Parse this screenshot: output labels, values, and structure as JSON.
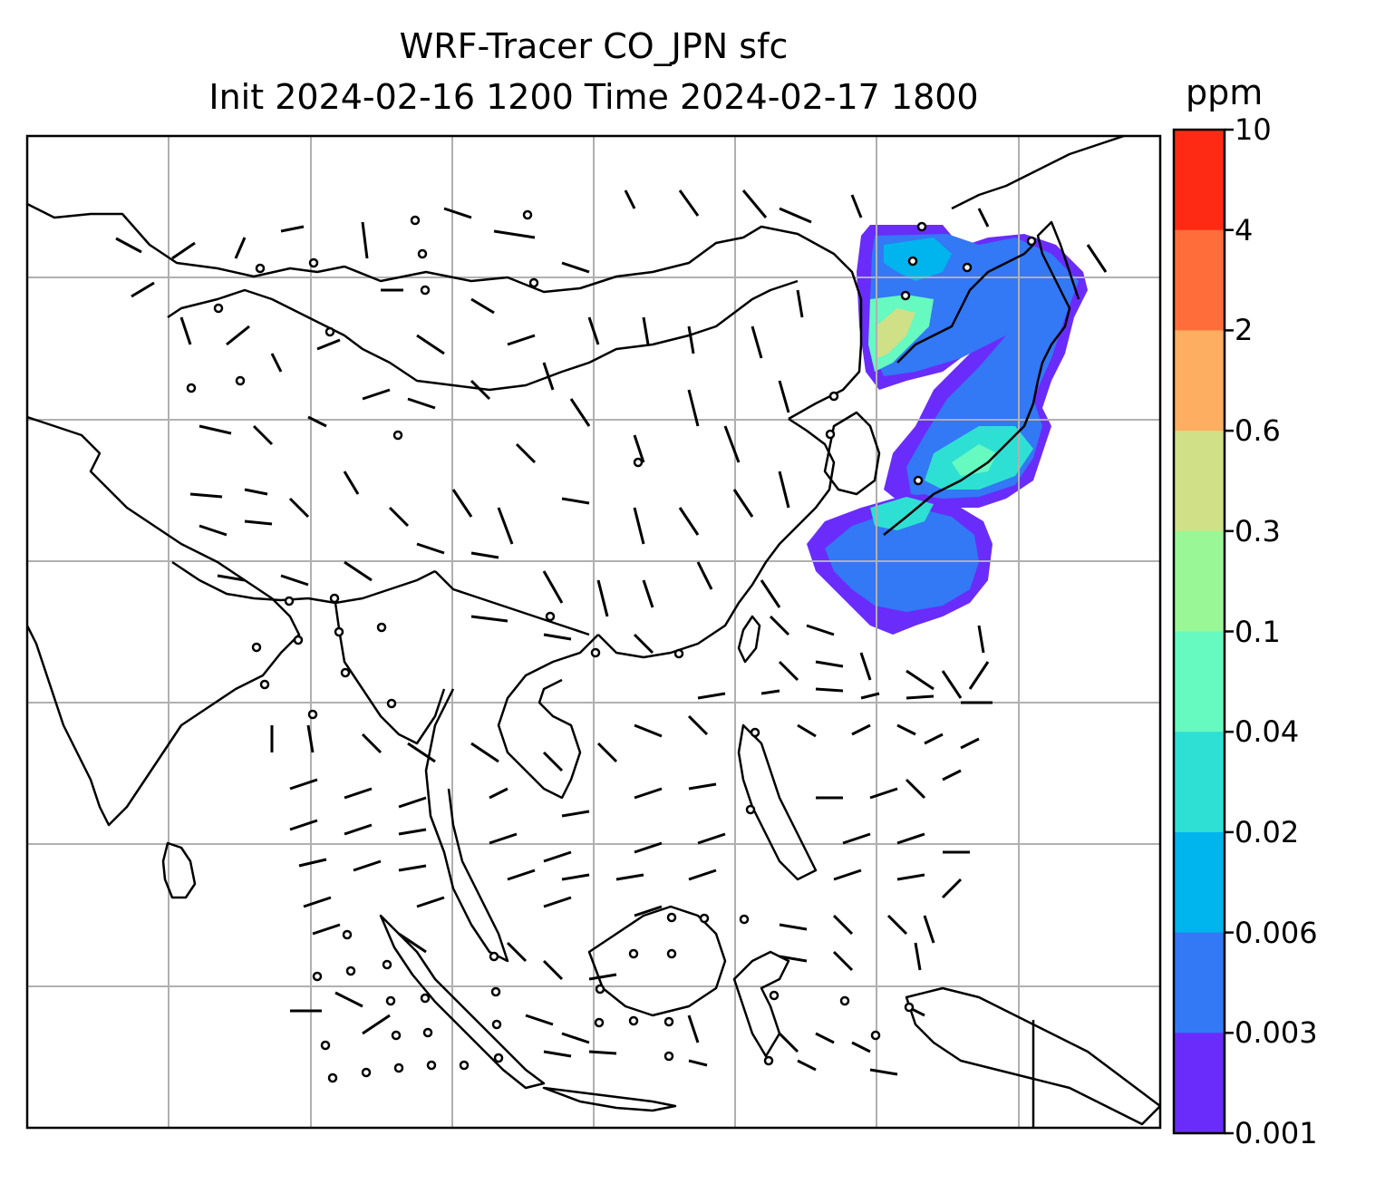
{
  "title": {
    "line1": "WRF-Tracer CO_JPN sfc",
    "line2": "Init 2024-02-16 1200 Time 2024-02-17 1800"
  },
  "colorbar": {
    "units": "ppm",
    "ticks": [
      "10",
      "4",
      "2",
      "0.6",
      "0.3",
      "0.1",
      "0.04",
      "0.02",
      "0.006",
      "0.003",
      "0.001"
    ],
    "colors": [
      "#ff2a14",
      "#ff6e3a",
      "#fdae61",
      "#cfe087",
      "#99f796",
      "#66f9c0",
      "#2ee0d3",
      "#00b4ee",
      "#3378f5",
      "#6a2cfb"
    ]
  },
  "map": {
    "frame_color": "#000000",
    "grid_color": "#b0b0b0",
    "coastline_color": "#000000",
    "wind_barb_color": "#000000",
    "plume_region": "Japan / East China Sea / Sea of Japan"
  }
}
